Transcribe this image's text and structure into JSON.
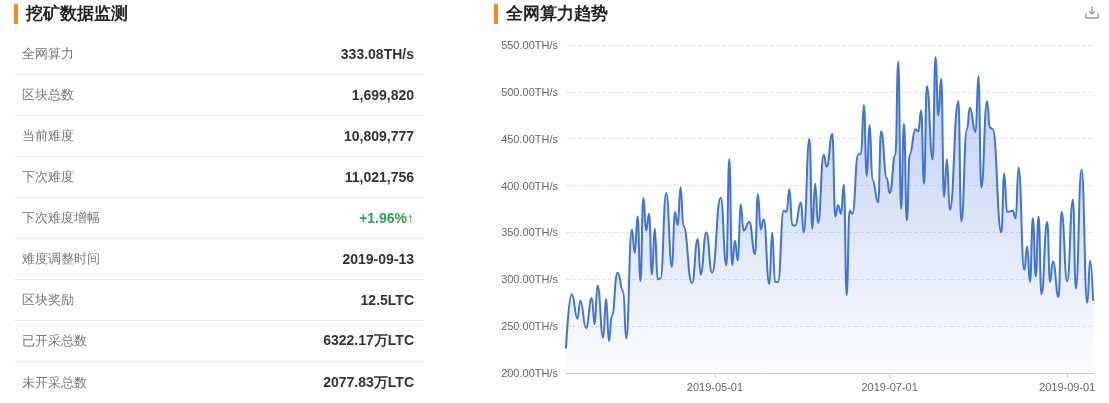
{
  "chart_data": [
    {
      "type": "other",
      "title": "挖矿数据监测",
      "categories": [
        "全网算力",
        "区块总数",
        "当前难度",
        "下次难度",
        "下次难度增幅",
        "难度调整时间",
        "区块奖励",
        "已开采总数",
        "未开采总数"
      ],
      "value_labels": [
        "333.08TH/s",
        "1,699,820",
        "10,809,777",
        "11,021,756",
        "+1.96%↑",
        "2019-09-13",
        "12.5LTC",
        "6322.17万LTC",
        "2077.83万LTC"
      ],
      "colors": [
        "#333333",
        "#333333",
        "#333333",
        "#333333",
        "#2e9e5b",
        "#333333",
        "#333333",
        "#333333",
        "#333333"
      ]
    },
    {
      "type": "area",
      "title": "全网算力趋势",
      "color": "#3f73d9",
      "grid": "y",
      "marker": "none",
      "line_style": "solid",
      "xlim": [
        "2019-03-10",
        "2019-09-10"
      ],
      "xticks": [
        {
          "value": "2019-05-01",
          "label": "2019-05-01"
        },
        {
          "value": "2019-07-01",
          "label": "2019-07-01"
        },
        {
          "value": "2019-09-01",
          "label": "2019-09-01"
        }
      ],
      "ylim": [
        200,
        550
      ],
      "yticks": [
        {
          "value": 200,
          "label": "200.00TH/s"
        },
        {
          "value": 250,
          "label": "250.00TH/s"
        },
        {
          "value": 300,
          "label": "300.00TH/s"
        },
        {
          "value": 350,
          "label": "350.00TH/s"
        },
        {
          "value": 400,
          "label": "400.00TH/s"
        },
        {
          "value": 450,
          "label": "450.00TH/s"
        },
        {
          "value": 500,
          "label": "500.00TH/s"
        },
        {
          "value": 550,
          "label": "550.00TH/s"
        }
      ],
      "x": [
        "2019-03-10",
        "2019-03-12",
        "2019-03-14",
        "2019-03-15",
        "2019-03-17",
        "2019-03-19",
        "2019-03-20",
        "2019-03-21",
        "2019-03-23",
        "2019-03-24",
        "2019-03-25",
        "2019-03-26",
        "2019-03-28",
        "2019-03-30",
        "2019-03-31",
        "2019-04-02",
        "2019-04-03",
        "2019-04-04",
        "2019-04-05",
        "2019-04-06",
        "2019-04-07",
        "2019-04-08",
        "2019-04-09",
        "2019-04-10",
        "2019-04-11",
        "2019-04-12",
        "2019-04-14",
        "2019-04-16",
        "2019-04-17",
        "2019-04-18",
        "2019-04-19",
        "2019-04-20",
        "2019-04-23",
        "2019-04-25",
        "2019-04-26",
        "2019-04-28",
        "2019-04-30",
        "2019-05-03",
        "2019-05-05",
        "2019-05-06",
        "2019-05-07",
        "2019-05-08",
        "2019-05-09",
        "2019-05-10",
        "2019-05-11",
        "2019-05-13",
        "2019-05-15",
        "2019-05-16",
        "2019-05-17",
        "2019-05-18",
        "2019-05-20",
        "2019-05-21",
        "2019-05-22",
        "2019-05-23",
        "2019-05-25",
        "2019-05-26",
        "2019-05-27",
        "2019-05-28",
        "2019-05-29",
        "2019-05-31",
        "2019-06-01",
        "2019-06-03",
        "2019-06-04",
        "2019-06-05",
        "2019-06-06",
        "2019-06-08",
        "2019-06-09",
        "2019-06-11",
        "2019-06-12",
        "2019-06-13",
        "2019-06-14",
        "2019-06-15",
        "2019-06-16",
        "2019-06-17",
        "2019-06-18",
        "2019-06-20",
        "2019-06-21",
        "2019-06-22",
        "2019-06-23",
        "2019-06-24",
        "2019-06-25",
        "2019-06-27",
        "2019-06-28",
        "2019-06-30",
        "2019-07-01",
        "2019-07-03",
        "2019-07-04",
        "2019-07-05",
        "2019-07-06",
        "2019-07-07",
        "2019-07-08",
        "2019-07-10",
        "2019-07-11",
        "2019-07-12",
        "2019-07-13",
        "2019-07-14",
        "2019-07-16",
        "2019-07-17",
        "2019-07-18",
        "2019-07-19",
        "2019-07-20",
        "2019-07-21",
        "2019-07-22",
        "2019-07-25",
        "2019-07-26",
        "2019-07-28",
        "2019-07-29",
        "2019-07-31",
        "2019-08-01",
        "2019-08-02",
        "2019-08-04",
        "2019-08-05",
        "2019-08-06",
        "2019-08-09",
        "2019-08-10",
        "2019-08-11",
        "2019-08-13",
        "2019-08-14",
        "2019-08-15",
        "2019-08-17",
        "2019-08-18",
        "2019-08-19",
        "2019-08-20",
        "2019-08-21",
        "2019-08-22",
        "2019-08-23",
        "2019-08-25",
        "2019-08-26",
        "2019-08-27",
        "2019-08-29",
        "2019-08-30",
        "2019-09-01",
        "2019-09-03",
        "2019-09-04",
        "2019-09-06",
        "2019-09-08",
        "2019-09-09",
        "2019-09-10"
      ],
      "values": [
        227,
        284,
        258,
        277,
        248,
        280,
        252,
        293,
        238,
        279,
        234,
        261,
        307,
        287,
        237,
        353,
        328,
        367,
        298,
        387,
        352,
        370,
        305,
        354,
        300,
        301,
        392,
        313,
        372,
        358,
        398,
        357,
        296,
        343,
        305,
        350,
        307,
        387,
        315,
        428,
        315,
        341,
        320,
        380,
        352,
        361,
        327,
        391,
        353,
        364,
        295,
        350,
        297,
        297,
        373,
        372,
        396,
        358,
        357,
        382,
        350,
        450,
        354,
        402,
        360,
        433,
        420,
        455,
        367,
        379,
        370,
        401,
        283,
        373,
        370,
        433,
        434,
        486,
        410,
        465,
        406,
        382,
        458,
        408,
        392,
        433,
        532,
        375,
        466,
        363,
        433,
        460,
        458,
        480,
        402,
        506,
        428,
        537,
        475,
        514,
        388,
        428,
        374,
        490,
        362,
        460,
        483,
        457,
        517,
        398,
        490,
        462,
        460,
        350,
        413,
        372,
        373,
        365,
        419,
        310,
        335,
        297,
        365,
        303,
        367,
        284,
        361,
        297,
        319,
        281,
        372,
        298,
        385,
        290,
        417,
        275,
        320,
        278
      ]
    }
  ]
}
